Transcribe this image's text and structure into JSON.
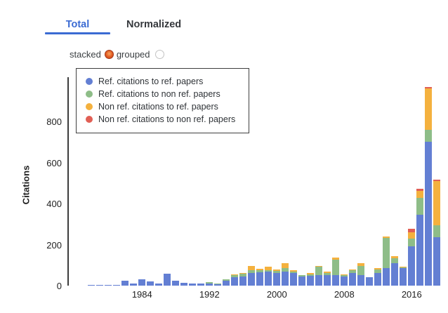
{
  "tabs": {
    "total": {
      "label": "Total",
      "active": true
    },
    "normalized": {
      "label": "Normalized",
      "active": false
    }
  },
  "controls": {
    "stacked_label": "stacked",
    "grouped_label": "grouped",
    "selected": "stacked"
  },
  "colors": {
    "accent_blue": "#3b6bd3",
    "tab_inactive_text": "#35383c",
    "radio_selected": "#d14f22",
    "axis_text": "#1f1f1f",
    "bar_blue": "#637fd3",
    "bar_green": "#8ebd88",
    "bar_orange": "#f4b13e",
    "bar_red": "#e15f55"
  },
  "chart_data": {
    "type": "bar",
    "stacked": true,
    "title": "",
    "xlabel": "",
    "ylabel": "Citations",
    "grid": false,
    "legend_position": "top-left",
    "ylim": [
      0,
      1015
    ],
    "y_ticks": [
      0,
      200,
      400,
      600,
      800
    ],
    "x_ticks": [
      "1984",
      "1992",
      "2000",
      "2008",
      "2016"
    ],
    "categories": [
      "1978",
      "1979",
      "1980",
      "1981",
      "1982",
      "1983",
      "1984",
      "1985",
      "1986",
      "1987",
      "1988",
      "1989",
      "1990",
      "1991",
      "1992",
      "1993",
      "1994",
      "1995",
      "1996",
      "1997",
      "1998",
      "1999",
      "2000",
      "2001",
      "2002",
      "2003",
      "2004",
      "2005",
      "2006",
      "2007",
      "2008",
      "2009",
      "2010",
      "2011",
      "2012",
      "2013",
      "2014",
      "2015",
      "2016",
      "2017",
      "2018",
      "2019"
    ],
    "series": [
      {
        "name": "Ref. citations to ref. papers",
        "color": "#637fd3",
        "values": [
          2,
          3,
          5,
          4,
          23,
          9,
          32,
          19,
          11,
          58,
          25,
          14,
          11,
          9,
          10,
          8,
          24,
          41,
          45,
          61,
          65,
          68,
          62,
          70,
          60,
          46,
          48,
          50,
          52,
          52,
          44,
          62,
          52,
          40,
          61,
          86,
          110,
          86,
          190,
          345,
          700,
          236
        ]
      },
      {
        "name": "Ref. citations to non ref. papers",
        "color": "#8ebd88",
        "values": [
          0,
          0,
          0,
          0,
          0,
          0,
          0,
          0,
          0,
          0,
          0,
          0,
          0,
          2,
          7,
          3,
          8,
          11,
          13,
          16,
          10,
          9,
          10,
          14,
          9,
          4,
          7,
          42,
          8,
          75,
          6,
          12,
          45,
          0,
          17,
          146,
          22,
          2,
          40,
          84,
          60,
          58
        ]
      },
      {
        "name": "Non ref. citations to ref. papers",
        "color": "#f4b13e",
        "values": [
          0,
          0,
          0,
          0,
          0,
          0,
          0,
          0,
          0,
          0,
          0,
          0,
          0,
          0,
          0,
          0,
          0,
          2,
          4,
          20,
          8,
          16,
          8,
          26,
          7,
          2,
          7,
          5,
          9,
          11,
          6,
          6,
          12,
          0,
          8,
          9,
          10,
          6,
          29,
          34,
          200,
          216
        ]
      },
      {
        "name": "Non ref. citations to non ref. papers",
        "color": "#e15f55",
        "values": [
          0,
          0,
          0,
          0,
          0,
          0,
          0,
          0,
          0,
          0,
          0,
          0,
          0,
          0,
          0,
          0,
          0,
          0,
          0,
          0,
          0,
          0,
          0,
          0,
          0,
          0,
          0,
          0,
          0,
          0,
          0,
          0,
          0,
          0,
          0,
          0,
          0,
          0,
          17,
          8,
          8,
          8
        ]
      }
    ]
  }
}
